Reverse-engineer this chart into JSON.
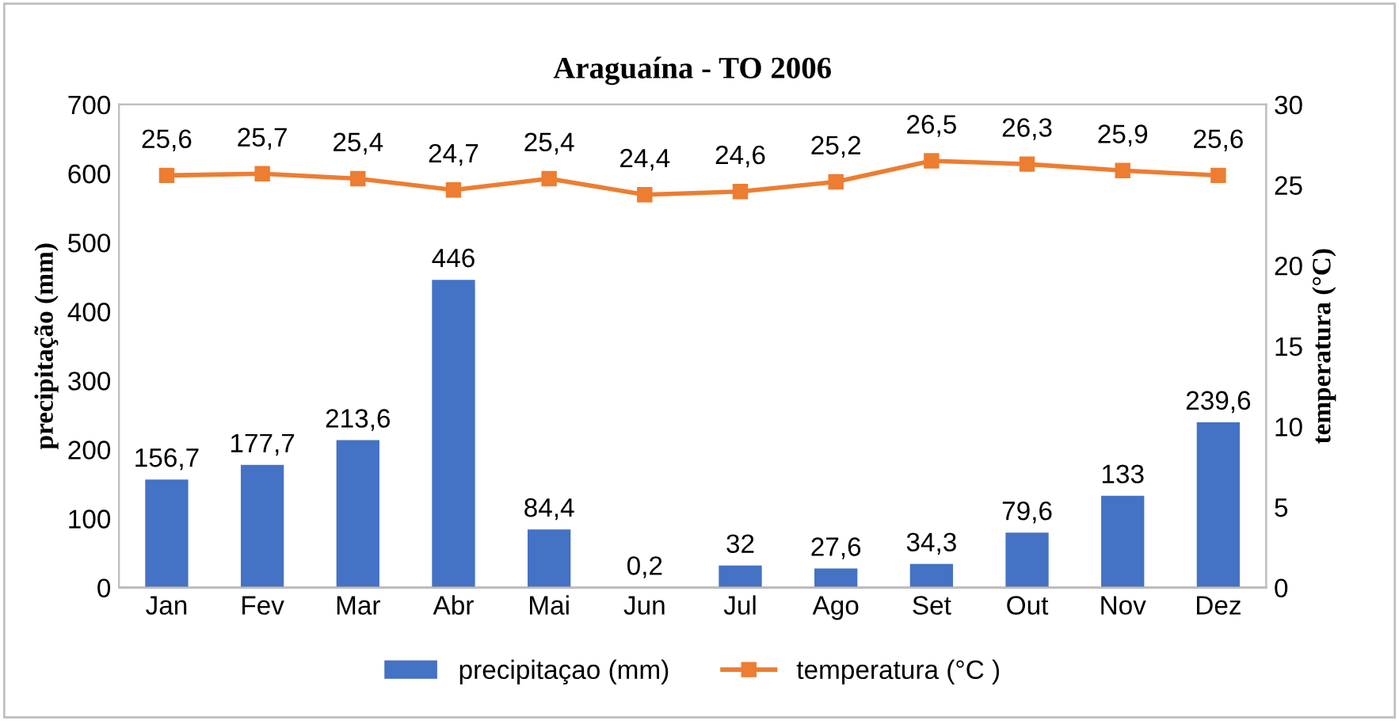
{
  "chart_data": {
    "type": "bar",
    "title": "Araguaína - TO 2006",
    "categories": [
      "Jan",
      "Fev",
      "Mar",
      "Abr",
      "Mai",
      "Jun",
      "Jul",
      "Ago",
      "Set",
      "Out",
      "Nov",
      "Dez"
    ],
    "series": [
      {
        "name": "precipitaçao (mm)",
        "color": "#4472c4",
        "values": [
          156.7,
          177.7,
          213.6,
          446,
          84.4,
          0.2,
          32,
          27.6,
          34.3,
          79.6,
          133,
          239.6
        ],
        "value_labels": [
          "156,7",
          "177,7",
          "213,6",
          "446",
          "84,4",
          "0,2",
          "32",
          "27,6",
          "34,3",
          "79,6",
          "133",
          "239,6"
        ]
      },
      {
        "name": "temperatura (°C )",
        "type": "line",
        "axis": "y2",
        "color": "#ed7d31",
        "marker": "square",
        "values": [
          25.6,
          25.7,
          25.4,
          24.7,
          25.4,
          24.4,
          24.6,
          25.2,
          26.5,
          26.3,
          25.9,
          25.6
        ],
        "value_labels": [
          "25,6",
          "25,7",
          "25,4",
          "24,7",
          "25,4",
          "24,4",
          "24,6",
          "25,2",
          "26,5",
          "26,3",
          "25,9",
          "25,6"
        ]
      }
    ],
    "ylabel": "precipitação (mm)",
    "y2label": "temperatura (°C)",
    "ylim": [
      0,
      700
    ],
    "yticks": [
      0,
      100,
      200,
      300,
      400,
      500,
      600,
      700
    ],
    "y2lim": [
      0,
      30
    ],
    "y2ticks": [
      0,
      5,
      10,
      15,
      20,
      25,
      30
    ],
    "legend": "bottom",
    "grid": false
  }
}
